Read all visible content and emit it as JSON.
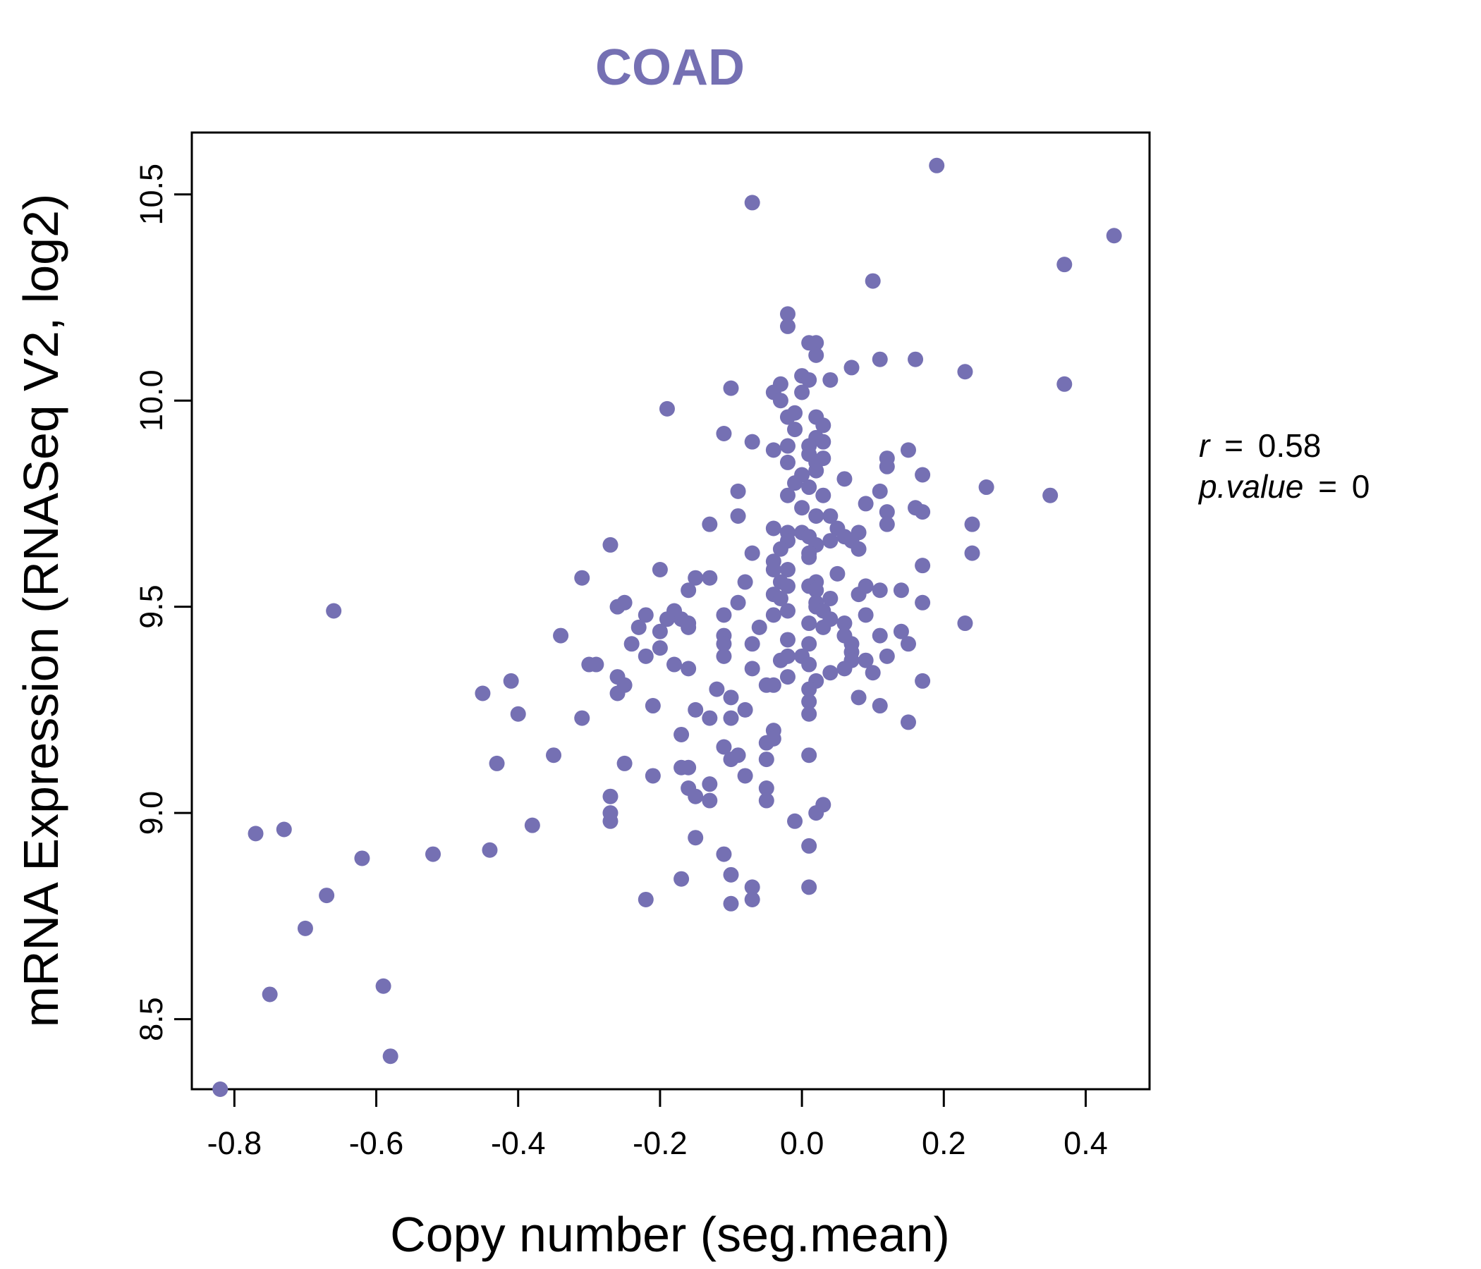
{
  "chart_data": {
    "type": "scatter",
    "title": "COAD",
    "title_color": "#7570b3",
    "point_color": "#7570b3",
    "xlabel": "Copy number (seg.mean)",
    "ylabel": "mRNA Expression (RNASeq V2, log2)",
    "xlim": [
      -0.86,
      0.49
    ],
    "ylim": [
      8.33,
      10.65
    ],
    "xticks": [
      -0.8,
      -0.6,
      -0.4,
      -0.2,
      0.0,
      0.2,
      0.4
    ],
    "xtick_labels": [
      "-0.8",
      "-0.6",
      "-0.4",
      "-0.2",
      "0.0",
      "0.2",
      "0.4"
    ],
    "yticks": [
      8.5,
      9.0,
      9.5,
      10.0,
      10.5
    ],
    "ytick_labels": [
      "8.5",
      "9.0",
      "9.5",
      "10.0",
      "10.5"
    ],
    "grid": false,
    "annotations": {
      "r_label": "r",
      "r_value": "0.58",
      "p_label": "p.value",
      "p_value": "0",
      "equals": "="
    },
    "points": [
      [
        0.19,
        10.57
      ],
      [
        -0.07,
        10.48
      ],
      [
        0.44,
        10.4
      ],
      [
        0.37,
        10.33
      ],
      [
        0.1,
        10.29
      ],
      [
        -0.02,
        10.21
      ],
      [
        -0.02,
        10.18
      ],
      [
        0.01,
        10.14
      ],
      [
        0.02,
        10.14
      ],
      [
        0.02,
        10.11
      ],
      [
        0.11,
        10.1
      ],
      [
        0.16,
        10.1
      ],
      [
        0.07,
        10.08
      ],
      [
        0.23,
        10.07
      ],
      [
        0.0,
        10.06
      ],
      [
        0.04,
        10.05
      ],
      [
        0.01,
        10.05
      ],
      [
        -0.03,
        10.04
      ],
      [
        0.37,
        10.04
      ],
      [
        -0.1,
        10.03
      ],
      [
        -0.04,
        10.02
      ],
      [
        0.0,
        10.02
      ],
      [
        -0.03,
        10.0
      ],
      [
        -0.19,
        9.98
      ],
      [
        -0.01,
        9.97
      ],
      [
        -0.02,
        9.96
      ],
      [
        0.02,
        9.96
      ],
      [
        0.03,
        9.94
      ],
      [
        -0.01,
        9.93
      ],
      [
        -0.11,
        9.92
      ],
      [
        0.02,
        9.91
      ],
      [
        0.03,
        9.9
      ],
      [
        -0.07,
        9.9
      ],
      [
        0.01,
        9.89
      ],
      [
        -0.04,
        9.88
      ],
      [
        -0.02,
        9.89
      ],
      [
        0.15,
        9.88
      ],
      [
        0.01,
        9.87
      ],
      [
        0.03,
        9.86
      ],
      [
        0.12,
        9.86
      ],
      [
        0.02,
        9.85
      ],
      [
        -0.02,
        9.85
      ],
      [
        0.12,
        9.84
      ],
      [
        0.02,
        9.83
      ],
      [
        0.17,
        9.82
      ],
      [
        0.0,
        9.82
      ],
      [
        0.06,
        9.81
      ],
      [
        -0.01,
        9.8
      ],
      [
        0.26,
        9.79
      ],
      [
        0.01,
        9.79
      ],
      [
        -0.09,
        9.78
      ],
      [
        0.11,
        9.78
      ],
      [
        0.03,
        9.77
      ],
      [
        -0.02,
        9.77
      ],
      [
        0.35,
        9.77
      ],
      [
        0.09,
        9.75
      ],
      [
        0.16,
        9.74
      ],
      [
        0.0,
        9.74
      ],
      [
        0.12,
        9.73
      ],
      [
        0.17,
        9.73
      ],
      [
        0.04,
        9.72
      ],
      [
        -0.09,
        9.72
      ],
      [
        0.02,
        9.72
      ],
      [
        -0.13,
        9.7
      ],
      [
        0.12,
        9.7
      ],
      [
        0.24,
        9.7
      ],
      [
        -0.04,
        9.69
      ],
      [
        0.05,
        9.69
      ],
      [
        -0.02,
        9.68
      ],
      [
        0.08,
        9.68
      ],
      [
        0.0,
        9.68
      ],
      [
        0.06,
        9.67
      ],
      [
        0.01,
        9.67
      ],
      [
        -0.02,
        9.66
      ],
      [
        0.04,
        9.66
      ],
      [
        0.07,
        9.66
      ],
      [
        -0.27,
        9.65
      ],
      [
        0.02,
        9.65
      ],
      [
        -0.03,
        9.64
      ],
      [
        0.01,
        9.63
      ],
      [
        0.08,
        9.64
      ],
      [
        0.24,
        9.63
      ],
      [
        -0.07,
        9.63
      ],
      [
        0.01,
        9.62
      ],
      [
        -0.04,
        9.61
      ],
      [
        0.17,
        9.6
      ],
      [
        -0.04,
        9.59
      ],
      [
        -0.02,
        9.59
      ],
      [
        -0.2,
        9.59
      ],
      [
        0.05,
        9.58
      ],
      [
        -0.15,
        9.57
      ],
      [
        -0.31,
        9.57
      ],
      [
        -0.13,
        9.57
      ],
      [
        -0.03,
        9.56
      ],
      [
        0.02,
        9.56
      ],
      [
        -0.08,
        9.56
      ],
      [
        0.09,
        9.55
      ],
      [
        0.01,
        9.55
      ],
      [
        -0.02,
        9.55
      ],
      [
        -0.16,
        9.54
      ],
      [
        0.02,
        9.54
      ],
      [
        0.11,
        9.54
      ],
      [
        0.14,
        9.54
      ],
      [
        -0.04,
        9.53
      ],
      [
        0.08,
        9.53
      ],
      [
        0.04,
        9.52
      ],
      [
        -0.03,
        9.52
      ],
      [
        0.02,
        9.51
      ],
      [
        0.17,
        9.51
      ],
      [
        -0.25,
        9.51
      ],
      [
        -0.09,
        9.51
      ],
      [
        -0.26,
        9.5
      ],
      [
        0.02,
        9.5
      ],
      [
        -0.02,
        9.49
      ],
      [
        0.03,
        9.49
      ],
      [
        -0.18,
        9.49
      ],
      [
        -0.04,
        9.48
      ],
      [
        0.09,
        9.48
      ],
      [
        -0.22,
        9.48
      ],
      [
        -0.11,
        9.48
      ],
      [
        -0.17,
        9.47
      ],
      [
        0.04,
        9.47
      ],
      [
        -0.19,
        9.47
      ],
      [
        0.06,
        9.46
      ],
      [
        -0.16,
        9.46
      ],
      [
        0.01,
        9.46
      ],
      [
        0.23,
        9.46
      ],
      [
        -0.06,
        9.45
      ],
      [
        -0.23,
        9.45
      ],
      [
        0.03,
        9.45
      ],
      [
        -0.16,
        9.45
      ],
      [
        0.14,
        9.44
      ],
      [
        -0.2,
        9.44
      ],
      [
        0.06,
        9.43
      ],
      [
        -0.34,
        9.43
      ],
      [
        -0.11,
        9.43
      ],
      [
        -0.02,
        9.42
      ],
      [
        0.11,
        9.43
      ],
      [
        -0.11,
        9.41
      ],
      [
        0.01,
        9.41
      ],
      [
        -0.24,
        9.41
      ],
      [
        -0.07,
        9.41
      ],
      [
        0.07,
        9.41
      ],
      [
        0.15,
        9.41
      ],
      [
        -0.2,
        9.4
      ],
      [
        0.07,
        9.39
      ],
      [
        -0.02,
        9.38
      ],
      [
        -0.11,
        9.38
      ],
      [
        0.0,
        9.38
      ],
      [
        0.12,
        9.38
      ],
      [
        0.07,
        9.37
      ],
      [
        -0.22,
        9.38
      ],
      [
        -0.03,
        9.37
      ],
      [
        0.09,
        9.37
      ],
      [
        -0.18,
        9.36
      ],
      [
        0.01,
        9.36
      ],
      [
        -0.29,
        9.36
      ],
      [
        -0.3,
        9.36
      ],
      [
        -0.16,
        9.35
      ],
      [
        0.06,
        9.35
      ],
      [
        -0.07,
        9.35
      ],
      [
        0.04,
        9.34
      ],
      [
        0.1,
        9.34
      ],
      [
        -0.02,
        9.33
      ],
      [
        -0.26,
        9.33
      ],
      [
        0.02,
        9.32
      ],
      [
        0.17,
        9.32
      ],
      [
        -0.41,
        9.32
      ],
      [
        -0.25,
        9.31
      ],
      [
        -0.04,
        9.31
      ],
      [
        -0.05,
        9.31
      ],
      [
        0.01,
        9.3
      ],
      [
        -0.45,
        9.29
      ],
      [
        -0.26,
        9.29
      ],
      [
        -0.12,
        9.3
      ],
      [
        0.08,
        9.28
      ],
      [
        -0.1,
        9.28
      ],
      [
        0.01,
        9.27
      ],
      [
        -0.21,
        9.26
      ],
      [
        0.11,
        9.26
      ],
      [
        -0.15,
        9.25
      ],
      [
        -0.08,
        9.25
      ],
      [
        -0.4,
        9.24
      ],
      [
        0.01,
        9.24
      ],
      [
        -0.31,
        9.23
      ],
      [
        -0.13,
        9.23
      ],
      [
        -0.1,
        9.23
      ],
      [
        0.15,
        9.22
      ],
      [
        -0.04,
        9.2
      ],
      [
        -0.17,
        9.19
      ],
      [
        -0.04,
        9.18
      ],
      [
        -0.05,
        9.17
      ],
      [
        -0.11,
        9.16
      ],
      [
        0.01,
        9.14
      ],
      [
        -0.35,
        9.14
      ],
      [
        -0.09,
        9.14
      ],
      [
        -0.05,
        9.13
      ],
      [
        -0.1,
        9.13
      ],
      [
        -0.43,
        9.12
      ],
      [
        -0.25,
        9.12
      ],
      [
        -0.17,
        9.11
      ],
      [
        -0.16,
        9.11
      ],
      [
        -0.08,
        9.09
      ],
      [
        -0.21,
        9.09
      ],
      [
        -0.13,
        9.07
      ],
      [
        -0.16,
        9.06
      ],
      [
        -0.05,
        9.06
      ],
      [
        -0.15,
        9.04
      ],
      [
        -0.27,
        9.04
      ],
      [
        -0.13,
        9.03
      ],
      [
        -0.05,
        9.03
      ],
      [
        0.03,
        9.02
      ],
      [
        -0.27,
        9.0
      ],
      [
        0.02,
        9.0
      ],
      [
        -0.01,
        8.98
      ],
      [
        -0.27,
        8.98
      ],
      [
        -0.38,
        8.97
      ],
      [
        -0.73,
        8.96
      ],
      [
        -0.77,
        8.95
      ],
      [
        -0.15,
        8.94
      ],
      [
        0.01,
        8.92
      ],
      [
        -0.44,
        8.91
      ],
      [
        -0.52,
        8.9
      ],
      [
        -0.11,
        8.9
      ],
      [
        -0.62,
        8.89
      ],
      [
        -0.1,
        8.85
      ],
      [
        -0.17,
        8.84
      ],
      [
        0.01,
        8.82
      ],
      [
        -0.07,
        8.82
      ],
      [
        -0.67,
        8.8
      ],
      [
        -0.22,
        8.79
      ],
      [
        -0.07,
        8.79
      ],
      [
        -0.1,
        8.78
      ],
      [
        -0.7,
        8.72
      ],
      [
        -0.59,
        8.58
      ],
      [
        -0.75,
        8.56
      ],
      [
        -0.58,
        8.41
      ],
      [
        -0.82,
        8.33
      ],
      [
        -0.66,
        9.49
      ]
    ]
  }
}
